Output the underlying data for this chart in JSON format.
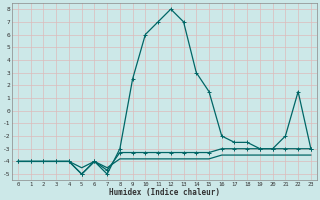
{
  "xlabel": "Humidex (Indice chaleur)",
  "bg_color": "#cce8e8",
  "grid_color": "#aacccc",
  "line_color": "#006666",
  "xlim": [
    -0.5,
    23.5
  ],
  "ylim": [
    -5.5,
    8.5
  ],
  "xticks": [
    0,
    1,
    2,
    3,
    4,
    5,
    6,
    7,
    8,
    9,
    10,
    11,
    12,
    13,
    14,
    15,
    16,
    17,
    18,
    19,
    20,
    21,
    22,
    23
  ],
  "yticks": [
    -5,
    -4,
    -3,
    -2,
    -1,
    0,
    1,
    2,
    3,
    4,
    5,
    6,
    7,
    8
  ],
  "series_main_x": [
    0,
    1,
    2,
    3,
    4,
    5,
    6,
    7,
    8,
    9,
    10,
    11,
    12,
    13,
    14,
    15,
    16,
    17,
    18,
    19,
    20,
    21,
    22,
    23
  ],
  "series_main_y": [
    -4,
    -4,
    -4,
    -4,
    -4,
    -5,
    -4,
    -5,
    -3,
    2.5,
    6,
    7,
    8,
    7,
    3,
    1.5,
    -2,
    -2.5,
    -2.5,
    -3,
    -3,
    -2,
    1.5,
    -3
  ],
  "series_flat1_x": [
    0,
    1,
    2,
    3,
    4,
    5,
    6,
    7,
    8,
    9,
    10,
    11,
    12,
    13,
    14,
    15,
    16,
    17,
    18,
    19,
    20,
    21,
    22,
    23
  ],
  "series_flat1_y": [
    -4,
    -4,
    -4,
    -4,
    -4,
    -5,
    -4,
    -4.7,
    -3.3,
    -3.3,
    -3.3,
    -3.3,
    -3.3,
    -3.3,
    -3.3,
    -3.3,
    -3,
    -3,
    -3,
    -3,
    -3,
    -3,
    -3,
    -3
  ],
  "series_flat2_x": [
    0,
    1,
    2,
    3,
    4,
    5,
    6,
    7,
    8,
    9,
    10,
    11,
    12,
    13,
    14,
    15,
    16,
    17,
    18,
    19,
    20,
    21,
    22,
    23
  ],
  "series_flat2_y": [
    -4,
    -4,
    -4,
    -4,
    -4,
    -4.5,
    -4,
    -4.5,
    -3.8,
    -3.8,
    -3.8,
    -3.8,
    -3.8,
    -3.8,
    -3.8,
    -3.8,
    -3.5,
    -3.5,
    -3.5,
    -3.5,
    -3.5,
    -3.5,
    -3.5,
    -3.5
  ]
}
